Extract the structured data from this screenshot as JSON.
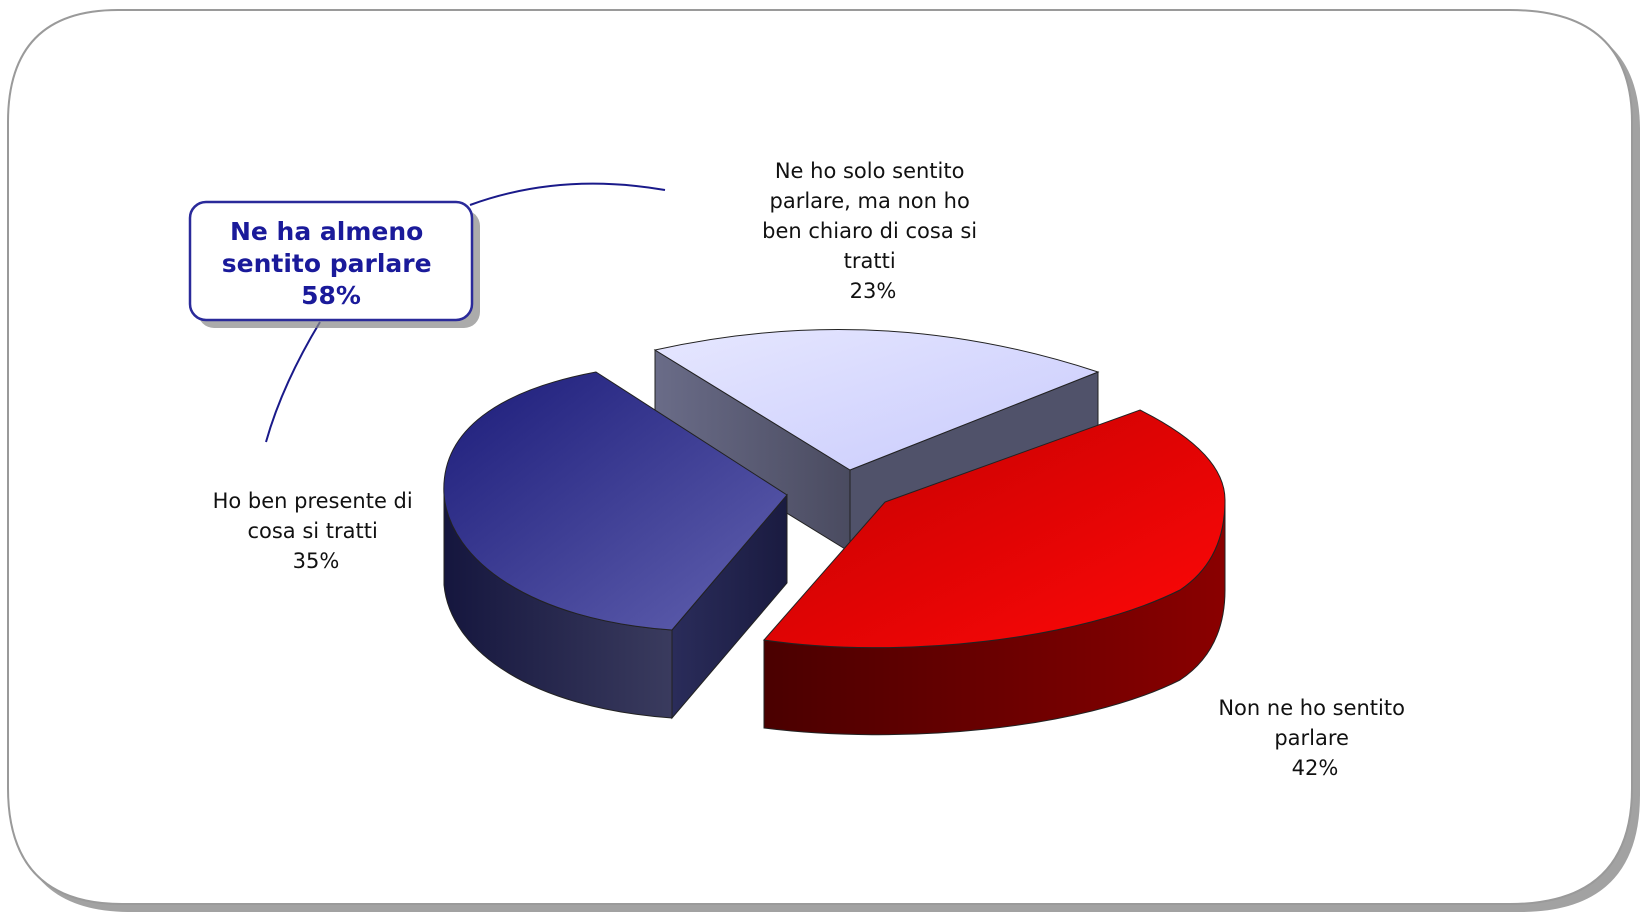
{
  "chart_data": {
    "type": "pie",
    "style": "3d-exploded",
    "slices": [
      {
        "label_lines": [
          "Ne ho solo sentito",
          "parlare, ma non ho",
          "ben chiaro di cosa si",
          "tratti"
        ],
        "value": 23,
        "value_label": "23%",
        "color": "#d6d8ff"
      },
      {
        "label_lines": [
          "Non ne ho sentito",
          "parlare"
        ],
        "value": 42,
        "value_label": "42%",
        "color": "#e00000"
      },
      {
        "label_lines": [
          "Ho ben presente di",
          "cosa si tratti"
        ],
        "value": 35,
        "value_label": "35%",
        "color": "#3a3a9a"
      }
    ],
    "callout": {
      "lines": [
        "Ne ha almeno",
        "sentito parlare",
        "58%"
      ],
      "color": "#1a1a9a"
    }
  }
}
